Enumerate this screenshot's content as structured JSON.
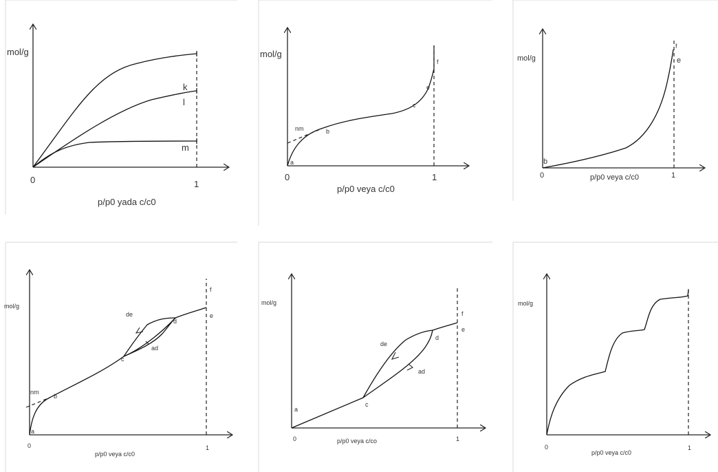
{
  "panels": [
    {
      "ylabel": "mol/g",
      "xlabel": "p/p0 yada c/c0",
      "origin": "0",
      "one": "1",
      "curves": [
        "k",
        "l",
        "m"
      ]
    },
    {
      "ylabel": "mol/g",
      "xlabel": "p/p0 veya c/c0",
      "origin": "0",
      "one": "1",
      "points": [
        "a",
        "nm",
        "b",
        "c",
        "e",
        "f"
      ]
    },
    {
      "ylabel": "mol/g",
      "xlabel": "p/p0 veya c/c0",
      "origin": "0",
      "one": "1",
      "points": [
        "b",
        "e",
        "f"
      ]
    },
    {
      "ylabel": "mol/g",
      "xlabel": "p/p0 veya c/c0",
      "origin": "0",
      "one": "1",
      "points": [
        "a",
        "nm",
        "b",
        "c",
        "d",
        "e",
        "f"
      ],
      "branches": [
        "de",
        "ad"
      ]
    },
    {
      "ylabel": "mol/g",
      "xlabel": "p/p0 veya c/co",
      "origin": "0",
      "one": "1",
      "points": [
        "a",
        "c",
        "d",
        "e",
        "f"
      ],
      "branches": [
        "de",
        "ad"
      ]
    },
    {
      "ylabel": "mol/g",
      "xlabel": "p/p0 veya c/c0",
      "origin": "0",
      "one": "1"
    }
  ]
}
